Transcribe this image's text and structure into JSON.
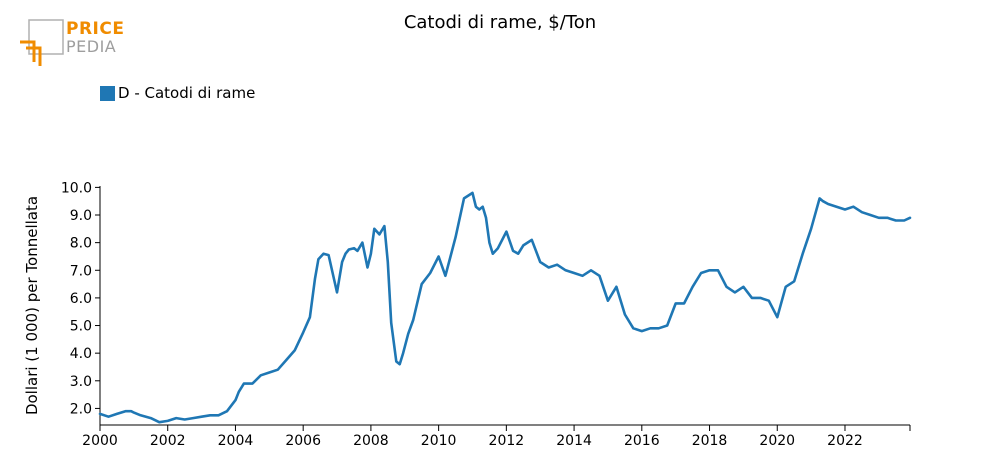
{
  "logo": {
    "line1": "PRICE",
    "line2": "PEDIA"
  },
  "chart_data": {
    "type": "line",
    "title": "Catodi di rame, $/Ton",
    "xlabel": "",
    "ylabel": "Dollari (1 000) per Tonnellata",
    "xlim": [
      2000.0,
      2023.92
    ],
    "ylim": [
      1.4,
      10.05
    ],
    "xticks": [
      "2000",
      "2002",
      "2004",
      "2006",
      "2008",
      "2010",
      "2012",
      "2014",
      "2016",
      "2018",
      "2020",
      "2022"
    ],
    "yticks": [
      "2.0",
      "3.0",
      "4.0",
      "5.0",
      "6.0",
      "7.0",
      "8.0",
      "9.0",
      "10.0"
    ],
    "grid": false,
    "legend_position": "top-left",
    "series": [
      {
        "name": "D - Catodi di rame",
        "color": "#1f77b4",
        "x": [
          2000.0,
          2000.25,
          2000.5,
          2000.75,
          2000.92,
          2001.0,
          2001.2,
          2001.5,
          2001.75,
          2002.0,
          2002.25,
          2002.5,
          2002.75,
          2003.0,
          2003.25,
          2003.5,
          2003.75,
          2004.0,
          2004.1,
          2004.25,
          2004.5,
          2004.75,
          2005.0,
          2005.25,
          2005.5,
          2005.75,
          2006.0,
          2006.2,
          2006.35,
          2006.45,
          2006.6,
          2006.75,
          2007.0,
          2007.15,
          2007.25,
          2007.35,
          2007.5,
          2007.6,
          2007.75,
          2007.9,
          2008.0,
          2008.1,
          2008.25,
          2008.4,
          2008.5,
          2008.6,
          2008.75,
          2008.85,
          2008.95,
          2009.1,
          2009.25,
          2009.5,
          2009.75,
          2010.0,
          2010.2,
          2010.35,
          2010.5,
          2010.75,
          2011.0,
          2011.1,
          2011.2,
          2011.3,
          2011.4,
          2011.5,
          2011.6,
          2011.75,
          2012.0,
          2012.2,
          2012.35,
          2012.5,
          2012.75,
          2013.0,
          2013.25,
          2013.5,
          2013.75,
          2014.0,
          2014.25,
          2014.5,
          2014.75,
          2015.0,
          2015.25,
          2015.5,
          2015.75,
          2016.0,
          2016.25,
          2016.5,
          2016.75,
          2017.0,
          2017.25,
          2017.5,
          2017.75,
          2018.0,
          2018.25,
          2018.5,
          2018.75,
          2019.0,
          2019.25,
          2019.5,
          2019.75,
          2020.0,
          2020.25,
          2020.5,
          2020.75,
          2021.0,
          2021.25,
          2021.35,
          2021.5,
          2021.75,
          2022.0,
          2022.25,
          2022.5,
          2022.75,
          2023.0,
          2023.25,
          2023.5,
          2023.75,
          2023.92
        ],
        "values": [
          1.8,
          1.7,
          1.8,
          1.9,
          1.9,
          1.85,
          1.75,
          1.65,
          1.5,
          1.55,
          1.65,
          1.6,
          1.65,
          1.7,
          1.75,
          1.75,
          1.9,
          2.3,
          2.6,
          2.9,
          2.9,
          3.2,
          3.3,
          3.4,
          3.75,
          4.1,
          4.75,
          5.3,
          6.7,
          7.4,
          7.6,
          7.55,
          6.2,
          7.3,
          7.6,
          7.75,
          7.8,
          7.7,
          8.0,
          7.1,
          7.6,
          8.5,
          8.3,
          8.6,
          7.3,
          5.1,
          3.7,
          3.6,
          4.0,
          4.7,
          5.2,
          6.5,
          6.9,
          7.5,
          6.8,
          7.5,
          8.2,
          9.6,
          9.8,
          9.3,
          9.2,
          9.3,
          8.9,
          8.0,
          7.6,
          7.8,
          8.4,
          7.7,
          7.6,
          7.9,
          8.1,
          7.3,
          7.1,
          7.2,
          7.0,
          6.9,
          6.8,
          7.0,
          6.8,
          5.9,
          6.4,
          5.4,
          4.9,
          4.8,
          4.9,
          4.9,
          5.0,
          5.8,
          5.8,
          6.4,
          6.9,
          7.0,
          7.0,
          6.4,
          6.2,
          6.4,
          6.0,
          6.0,
          5.9,
          5.3,
          6.4,
          6.6,
          7.6,
          8.5,
          9.6,
          9.5,
          9.4,
          9.3,
          9.2,
          9.3,
          9.1,
          9.0,
          8.9,
          8.9,
          8.8,
          8.8,
          8.9
        ]
      }
    ]
  }
}
